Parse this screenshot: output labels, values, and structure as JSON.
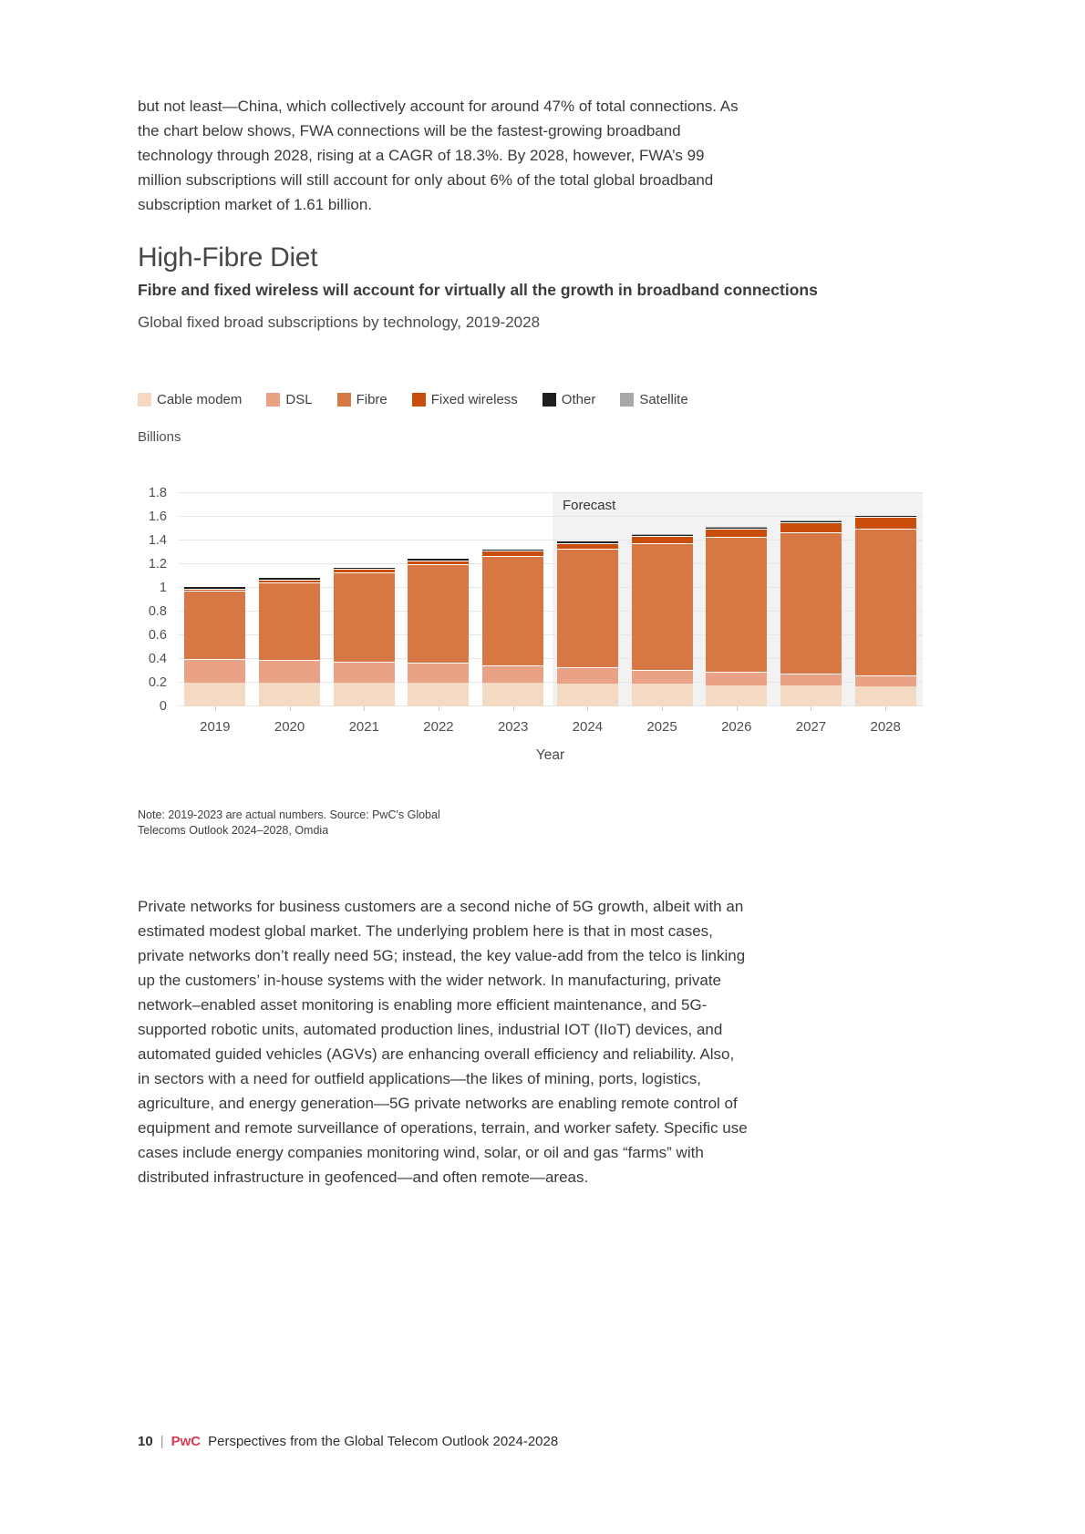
{
  "page": {
    "intro_paragraph": "but not least—China, which collectively account for around 47% of total connections. As the chart below shows, FWA connections will be the fastest-growing broadband technology through 2028, rising at a CAGR of 18.3%. By 2028, however, FWA’s 99 million subscriptions will still account for only about 6% of the total global broadband subscription market of 1.61 billion.",
    "section_heading": "High-Fibre Diet",
    "note_line1": "Note: 2019-2023 are actual numbers. Source: PwC's Global",
    "note_line2": "Telecoms Outlook 2024–2028, Omdia",
    "body_paragraph": "Private networks for business customers are a second niche of 5G growth, albeit with an estimated modest global market. The underlying problem here is that in most cases, private networks don’t really need 5G; instead, the key value-add from the telco is linking up the customers’ in-house systems with the wider network. In manufacturing, private network–enabled asset monitoring is enabling more efficient maintenance, and 5G-supported robotic units, automated production lines, industrial IOT (IIoT) devices, and automated guided vehicles (AGVs) are enhancing overall efficiency and reliability. Also, in sectors with a need for outfield applications—the likes of mining, ports, logistics, agriculture, and energy generation—5G private networks are enabling remote control of equipment and remote surveillance of operations, terrain, and worker safety. Specific use cases include energy companies monitoring wind, solar, or oil and gas “farms” with distributed infrastructure in geofenced—and often remote—areas.",
    "footer": {
      "page_number": "10",
      "separator": "|",
      "brand": "PwC",
      "brand_color": "#d93954",
      "text": "Perspectives from the Global Telecom Outlook 2024-2028"
    }
  },
  "chart_data": {
    "type": "bar",
    "stacked": true,
    "title": "Fibre and fixed wireless will account for virtually all the growth in broadband connections",
    "subtitle": "Global fixed broad subscriptions by technology, 2019-2028",
    "unit_label": "Billions",
    "xlabel": "Year",
    "forecast_label": "Forecast",
    "forecast_start_category": "2024",
    "forecast_band_left_pct": 50.3,
    "forecast_band_color": "#f2f2f2",
    "categories": [
      "2019",
      "2020",
      "2021",
      "2022",
      "2023",
      "2024",
      "2025",
      "2026",
      "2027",
      "2028"
    ],
    "series": [
      {
        "name": "Cable modem",
        "color": "#f4d9c3",
        "values": [
          0.2,
          0.2,
          0.2,
          0.2,
          0.2,
          0.19,
          0.19,
          0.18,
          0.18,
          0.17
        ]
      },
      {
        "name": "DSL",
        "color": "#e9a285",
        "values": [
          0.2,
          0.19,
          0.18,
          0.17,
          0.15,
          0.14,
          0.12,
          0.11,
          0.1,
          0.09
        ]
      },
      {
        "name": "Fibre",
        "color": "#d77844",
        "values": [
          0.58,
          0.66,
          0.75,
          0.83,
          0.92,
          1.0,
          1.07,
          1.14,
          1.19,
          1.24
        ]
      },
      {
        "name": "Fixed wireless",
        "color": "#c94e0b",
        "values": [
          0.015,
          0.022,
          0.028,
          0.034,
          0.042,
          0.05,
          0.059,
          0.07,
          0.083,
          0.099
        ]
      },
      {
        "name": "Other",
        "color": "#1f1f1f",
        "values": [
          0.01,
          0.01,
          0.01,
          0.01,
          0.01,
          0.01,
          0.01,
          0.01,
          0.01,
          0.01
        ]
      },
      {
        "name": "Satellite",
        "color": "#a8a8a8",
        "values": [
          0.003,
          0.003,
          0.003,
          0.003,
          0.003,
          0.003,
          0.003,
          0.003,
          0.003,
          0.003
        ]
      }
    ],
    "totals": [
      1.01,
      1.08,
      1.17,
      1.25,
      1.32,
      1.39,
      1.45,
      1.51,
      1.57,
      1.61
    ],
    "ylim": [
      0,
      1.8
    ],
    "yticks": [
      "1.8",
      "1.6",
      "1.4",
      "1.2",
      "1",
      "0.8",
      "0.6",
      "0.4",
      "0.2",
      "0"
    ],
    "grid": "horizontal",
    "legend_position": "top"
  }
}
